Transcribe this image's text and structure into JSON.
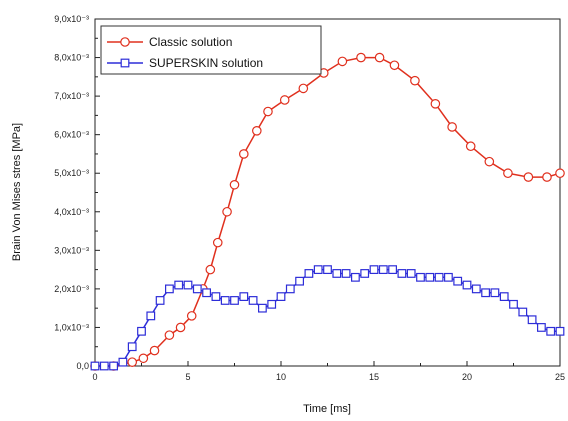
{
  "chart_data": {
    "type": "line",
    "xlabel": "Time [ms]",
    "ylabel": "Brain Von Mises stres [MPa]",
    "xlim": [
      0,
      25
    ],
    "ylim": [
      0,
      0.009
    ],
    "xticks": [
      {
        "value": 0,
        "label": "0"
      },
      {
        "value": 5,
        "label": "5"
      },
      {
        "value": 10,
        "label": "10"
      },
      {
        "value": 15,
        "label": "15"
      },
      {
        "value": 20,
        "label": "20"
      },
      {
        "value": 25,
        "label": "25"
      }
    ],
    "yticks": [
      {
        "value": 0,
        "label": "0,0"
      },
      {
        "value": 0.001,
        "label": "1,0x10⁻³"
      },
      {
        "value": 0.002,
        "label": "2,0x10⁻³"
      },
      {
        "value": 0.003,
        "label": "3,0x10⁻³"
      },
      {
        "value": 0.004,
        "label": "4,0x10⁻³"
      },
      {
        "value": 0.005,
        "label": "5,0x10⁻³"
      },
      {
        "value": 0.006,
        "label": "6,0x10⁻³"
      },
      {
        "value": 0.007,
        "label": "7,0x10⁻³"
      },
      {
        "value": 0.008,
        "label": "8,0x10⁻³"
      },
      {
        "value": 0.009,
        "label": "9,0x10⁻³"
      }
    ],
    "grid": false,
    "legend_position": "top-left",
    "series": [
      {
        "name": "Classic solution",
        "color": "#e0301e",
        "marker": "circle",
        "x": [
          0,
          1,
          2,
          2.6,
          3.2,
          4,
          4.6,
          5.2,
          5.8,
          6.2,
          6.6,
          7.1,
          7.5,
          8.0,
          8.7,
          9.3,
          10.2,
          11.2,
          12.3,
          13.3,
          14.3,
          15.3,
          16.1,
          17.2,
          18.3,
          19.2,
          20.2,
          21.2,
          22.2,
          23.3,
          24.3,
          25
        ],
        "y": [
          0,
          0,
          0.0001,
          0.0002,
          0.0004,
          0.0008,
          0.001,
          0.0013,
          0.002,
          0.0025,
          0.0032,
          0.004,
          0.0047,
          0.0055,
          0.0061,
          0.0066,
          0.0069,
          0.0072,
          0.0076,
          0.0079,
          0.008,
          0.008,
          0.0078,
          0.0074,
          0.0068,
          0.0062,
          0.0057,
          0.0053,
          0.005,
          0.0049,
          0.0049,
          0.005
        ]
      },
      {
        "name": "SUPERSKIN solution",
        "color": "#2d2dd8",
        "marker": "square",
        "x": [
          0,
          0.5,
          1.0,
          1.5,
          2.0,
          2.5,
          3.0,
          3.5,
          4.0,
          4.5,
          5.0,
          5.5,
          6.0,
          6.5,
          7.0,
          7.5,
          8.0,
          8.5,
          9.0,
          9.5,
          10.0,
          10.5,
          11.0,
          11.5,
          12.0,
          12.5,
          13.0,
          13.5,
          14.0,
          14.5,
          15.0,
          15.5,
          16.0,
          16.5,
          17.0,
          17.5,
          18.0,
          18.5,
          19.0,
          19.5,
          20.0,
          20.5,
          21.0,
          21.5,
          22.0,
          22.5,
          23.0,
          23.5,
          24.0,
          24.5,
          25.0
        ],
        "y": [
          0,
          0,
          0,
          0.0001,
          0.0005,
          0.0009,
          0.0013,
          0.0017,
          0.002,
          0.0021,
          0.0021,
          0.002,
          0.0019,
          0.0018,
          0.0017,
          0.0017,
          0.0018,
          0.0017,
          0.0015,
          0.0016,
          0.0018,
          0.002,
          0.0022,
          0.0024,
          0.0025,
          0.0025,
          0.0024,
          0.0024,
          0.0023,
          0.0024,
          0.0025,
          0.0025,
          0.0025,
          0.0024,
          0.0024,
          0.0023,
          0.0023,
          0.0023,
          0.0023,
          0.0022,
          0.0021,
          0.002,
          0.0019,
          0.0019,
          0.0018,
          0.0016,
          0.0014,
          0.0012,
          0.001,
          0.0009,
          0.0009
        ]
      }
    ]
  }
}
